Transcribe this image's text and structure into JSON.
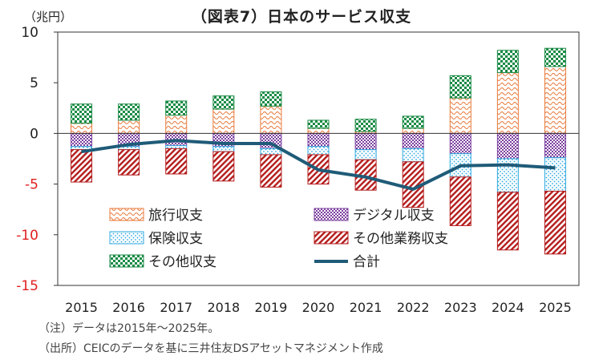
{
  "title": "（図表7）日本のサービス収支",
  "unit": "（兆円）",
  "notes": [
    "（注）データは2015年～2025年。",
    "（出所）CEICのデータを基に三井住友DSアセットマネジメント作成"
  ],
  "colors": {
    "travel": "#e8793a",
    "digital": "#7b3f9e",
    "insurance": "#2ea8e0",
    "other_business": "#b51c1c",
    "other": "#1a8a45",
    "total": "#1f5b78",
    "negative_tick": "#e02020"
  },
  "chart_data": {
    "type": "bar",
    "stacked": true,
    "categories": [
      "2015",
      "2016",
      "2017",
      "2018",
      "2019",
      "2020",
      "2021",
      "2022",
      "2023",
      "2024",
      "2025"
    ],
    "ylim": [
      -15,
      10
    ],
    "yticks": [
      "10",
      "5",
      "0",
      "-5",
      "-10",
      "-15"
    ],
    "xlabel": "",
    "ylabel": "",
    "grid": false,
    "legend_position": "bottom-center inside plot",
    "series": [
      {
        "name": "旅行収支",
        "key": "travel",
        "pattern": "wave",
        "values": [
          1.0,
          1.3,
          1.8,
          2.4,
          2.7,
          0.5,
          0.2,
          0.5,
          3.5,
          6.0,
          6.6
        ]
      },
      {
        "name": "その他収支",
        "key": "other",
        "pattern": "checker",
        "values": [
          1.9,
          1.6,
          1.4,
          1.3,
          1.4,
          0.8,
          1.2,
          1.2,
          2.2,
          2.2,
          1.8
        ]
      },
      {
        "name": "デジタル収支",
        "key": "digital",
        "pattern": "dots",
        "values": [
          -1.3,
          -1.3,
          -1.2,
          -1.3,
          -1.5,
          -1.3,
          -1.6,
          -1.5,
          -2.0,
          -2.5,
          -2.4
        ]
      },
      {
        "name": "保険収支",
        "key": "insurance",
        "pattern": "dots-light",
        "values": [
          -0.3,
          -0.3,
          -0.3,
          -0.5,
          -0.6,
          -0.8,
          -1.0,
          -1.3,
          -2.3,
          -3.3,
          -3.3
        ]
      },
      {
        "name": "その他業務収支",
        "key": "other_business",
        "pattern": "hatch",
        "values": [
          -3.2,
          -2.5,
          -2.5,
          -2.9,
          -3.2,
          -2.9,
          -3.0,
          -4.5,
          -4.8,
          -5.7,
          -6.2
        ]
      }
    ],
    "line": {
      "name": "合計",
      "key": "total",
      "values": [
        -1.8,
        -1.1,
        -0.7,
        -1.0,
        -1.0,
        -3.6,
        -4.3,
        -5.5,
        -3.2,
        -3.1,
        -3.4
      ]
    },
    "legend": [
      {
        "label": "旅行収支",
        "key": "travel",
        "kind": "box"
      },
      {
        "label": "デジタル収支",
        "key": "digital",
        "kind": "box"
      },
      {
        "label": "保険収支",
        "key": "insurance",
        "kind": "box"
      },
      {
        "label": "その他業務収支",
        "key": "other_business",
        "kind": "box"
      },
      {
        "label": "その他収支",
        "key": "other",
        "kind": "box"
      },
      {
        "label": "合計",
        "key": "total",
        "kind": "line"
      }
    ]
  }
}
